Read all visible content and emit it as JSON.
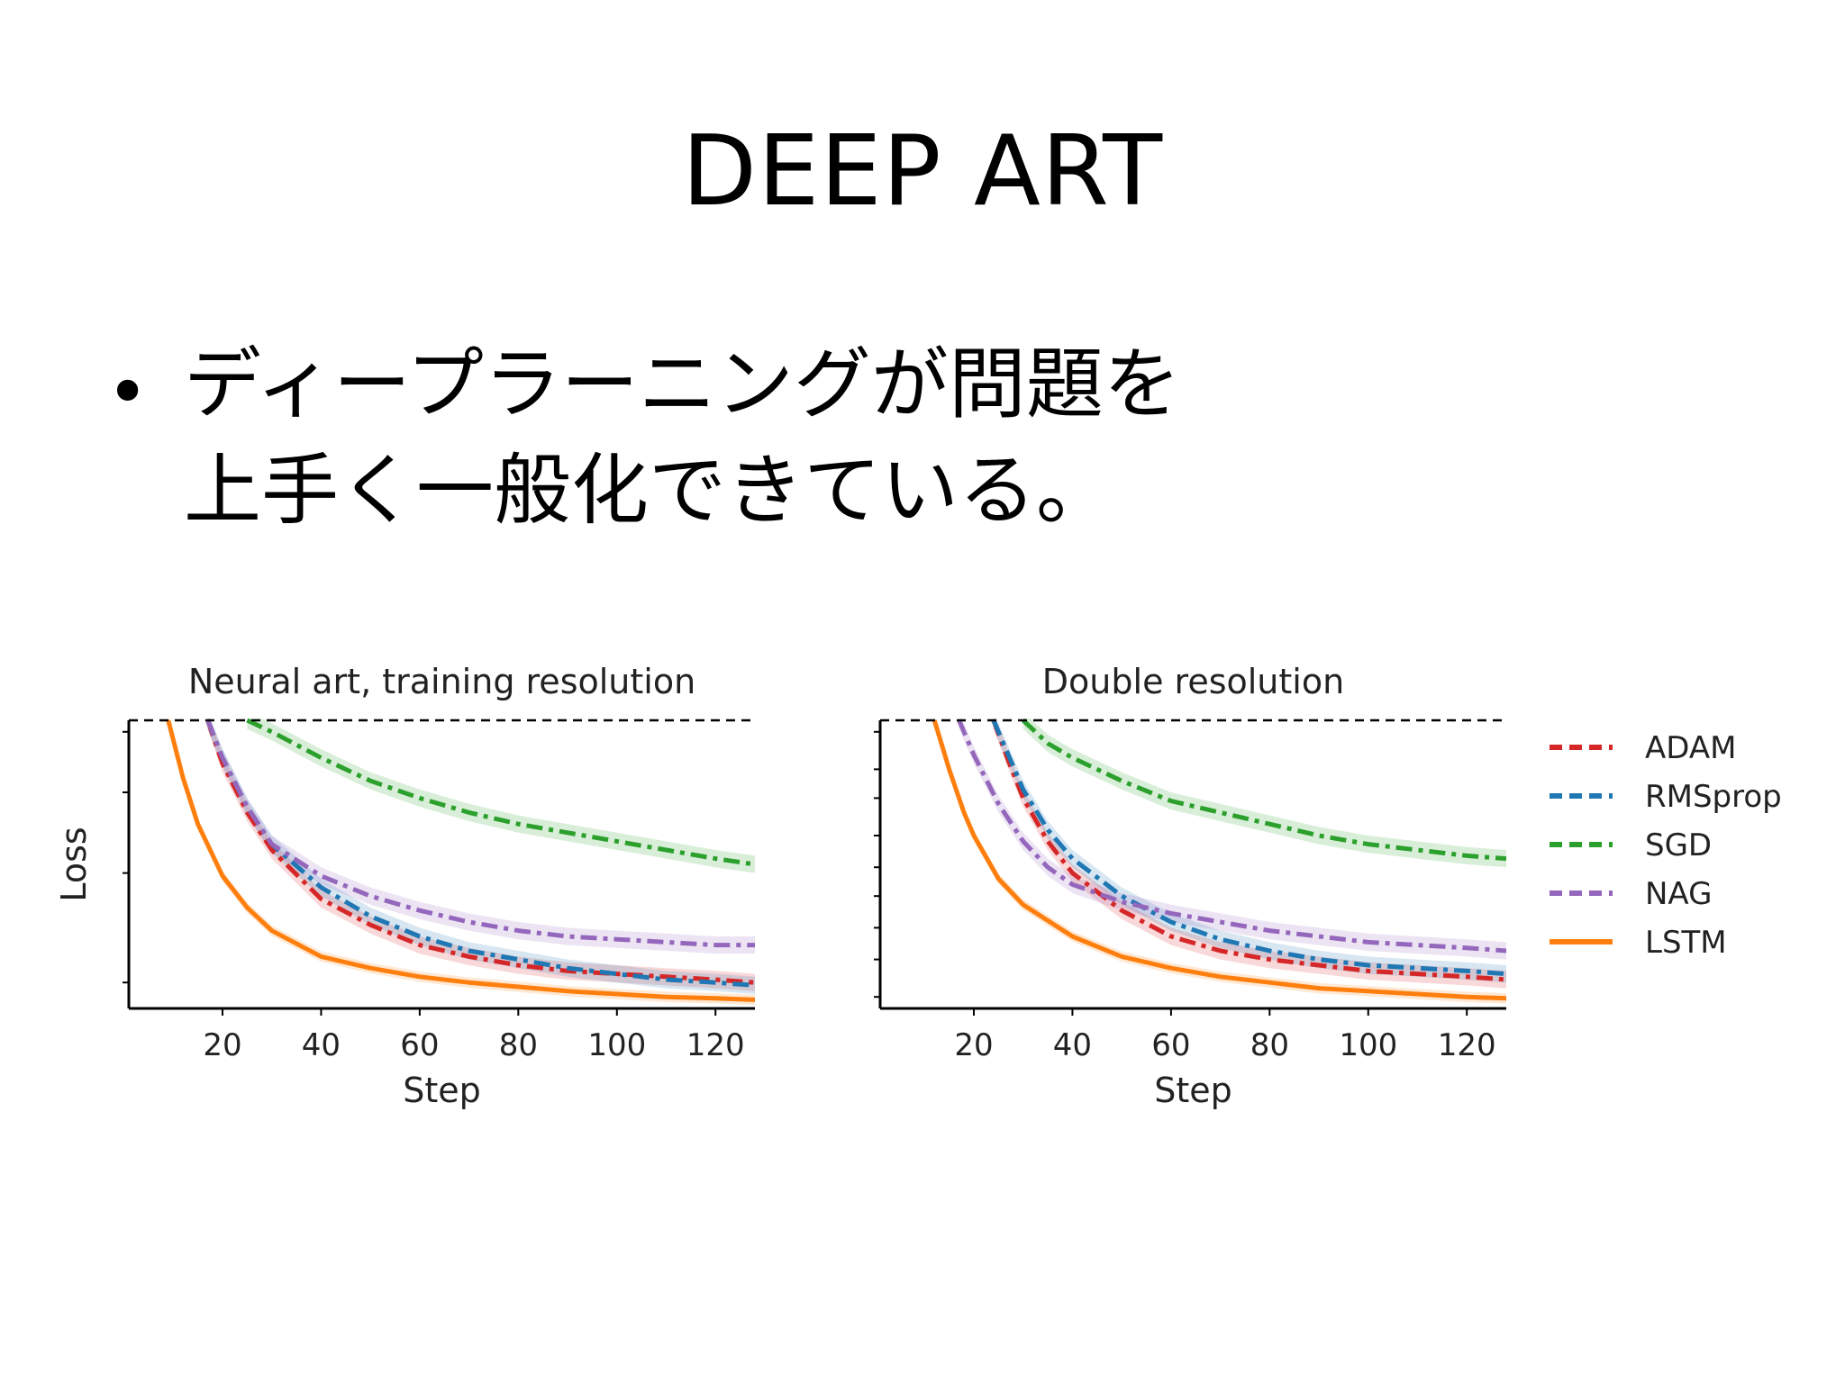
{
  "slide": {
    "title": "DEEP ART",
    "bullet_mark": "•",
    "bullet_lines": [
      "ディープラーニングが問題を",
      "上手く一般化できている。"
    ]
  },
  "chart_data": [
    {
      "type": "line",
      "title": "Neural art, training resolution",
      "xlabel": "Step",
      "ylabel": "Loss",
      "xlim": [
        1,
        128
      ],
      "ylim": [
        0,
        1
      ],
      "x_ticks": [
        20,
        40,
        60,
        80,
        100,
        120
      ],
      "y_axis_numbers_shown": false,
      "reference_line": "dashed black at top",
      "series": [
        {
          "name": "ADAM",
          "color": "#d62728",
          "dash": "dash-dot",
          "x": [
            17,
            20,
            25,
            30,
            40,
            50,
            60,
            70,
            80,
            90,
            100,
            110,
            120,
            128
          ],
          "y": [
            1.0,
            0.85,
            0.68,
            0.55,
            0.38,
            0.29,
            0.22,
            0.18,
            0.15,
            0.13,
            0.12,
            0.11,
            0.1,
            0.09
          ]
        },
        {
          "name": "RMSprop",
          "color": "#1f77b4",
          "dash": "dash-dot",
          "x": [
            17,
            20,
            25,
            30,
            40,
            50,
            60,
            70,
            80,
            90,
            100,
            110,
            120,
            128
          ],
          "y": [
            1.0,
            0.87,
            0.7,
            0.57,
            0.42,
            0.32,
            0.25,
            0.2,
            0.17,
            0.14,
            0.12,
            0.1,
            0.09,
            0.08
          ]
        },
        {
          "name": "SGD",
          "color": "#2ca02c",
          "dash": "dash-dot",
          "x": [
            25,
            30,
            40,
            50,
            60,
            70,
            80,
            90,
            100,
            110,
            120,
            128
          ],
          "y": [
            1.0,
            0.96,
            0.87,
            0.79,
            0.73,
            0.68,
            0.64,
            0.61,
            0.58,
            0.55,
            0.52,
            0.5
          ]
        },
        {
          "name": "NAG",
          "color": "#9467bd",
          "dash": "dash-dot",
          "x": [
            17,
            20,
            25,
            30,
            40,
            50,
            60,
            70,
            80,
            90,
            100,
            110,
            120,
            128
          ],
          "y": [
            1.0,
            0.87,
            0.7,
            0.57,
            0.46,
            0.39,
            0.34,
            0.3,
            0.27,
            0.25,
            0.24,
            0.23,
            0.22,
            0.22
          ]
        },
        {
          "name": "LSTM",
          "color": "#ff7f0e",
          "dash": "solid",
          "x": [
            9,
            12,
            15,
            20,
            25,
            30,
            40,
            50,
            60,
            70,
            80,
            90,
            100,
            110,
            120,
            128
          ],
          "y": [
            1.0,
            0.8,
            0.64,
            0.46,
            0.35,
            0.27,
            0.18,
            0.14,
            0.11,
            0.09,
            0.075,
            0.06,
            0.05,
            0.04,
            0.035,
            0.03
          ]
        }
      ]
    },
    {
      "type": "line",
      "title": "Double resolution",
      "xlabel": "Step",
      "ylabel": "",
      "xlim": [
        1,
        128
      ],
      "ylim": [
        0,
        1
      ],
      "x_ticks": [
        20,
        40,
        60,
        80,
        100,
        120
      ],
      "y_axis_numbers_shown": false,
      "reference_line": "dashed black at top",
      "series": [
        {
          "name": "ADAM",
          "color": "#d62728",
          "dash": "dash-dot",
          "x": [
            24,
            27,
            30,
            35,
            40,
            50,
            60,
            70,
            80,
            90,
            100,
            110,
            120,
            128
          ],
          "y": [
            1.0,
            0.86,
            0.73,
            0.58,
            0.47,
            0.34,
            0.25,
            0.2,
            0.17,
            0.15,
            0.13,
            0.12,
            0.11,
            0.1
          ]
        },
        {
          "name": "RMSprop",
          "color": "#1f77b4",
          "dash": "dash-dot",
          "x": [
            24,
            27,
            30,
            35,
            40,
            50,
            60,
            70,
            80,
            90,
            100,
            110,
            120,
            128
          ],
          "y": [
            1.0,
            0.88,
            0.76,
            0.62,
            0.52,
            0.39,
            0.3,
            0.24,
            0.2,
            0.17,
            0.15,
            0.14,
            0.13,
            0.12
          ]
        },
        {
          "name": "SGD",
          "color": "#2ca02c",
          "dash": "dash-dot",
          "x": [
            30,
            35,
            40,
            50,
            60,
            70,
            80,
            90,
            100,
            110,
            120,
            128
          ],
          "y": [
            1.0,
            0.92,
            0.87,
            0.79,
            0.72,
            0.68,
            0.64,
            0.6,
            0.57,
            0.55,
            0.53,
            0.52
          ]
        },
        {
          "name": "NAG",
          "color": "#9467bd",
          "dash": "dash-dot",
          "x": [
            17,
            20,
            25,
            30,
            35,
            40,
            50,
            60,
            70,
            80,
            90,
            100,
            110,
            120,
            128
          ],
          "y": [
            1.0,
            0.88,
            0.71,
            0.58,
            0.49,
            0.43,
            0.37,
            0.33,
            0.3,
            0.27,
            0.25,
            0.23,
            0.22,
            0.21,
            0.2
          ]
        },
        {
          "name": "LSTM",
          "color": "#ff7f0e",
          "dash": "solid",
          "x": [
            12,
            15,
            18,
            20,
            25,
            30,
            40,
            50,
            60,
            70,
            80,
            90,
            100,
            110,
            120,
            128
          ],
          "y": [
            1.0,
            0.83,
            0.68,
            0.6,
            0.45,
            0.36,
            0.25,
            0.18,
            0.14,
            0.11,
            0.09,
            0.07,
            0.06,
            0.05,
            0.04,
            0.035
          ]
        }
      ]
    }
  ],
  "legend": {
    "placement": "right of second panel",
    "items": [
      {
        "name": "ADAM",
        "color": "#d62728"
      },
      {
        "name": "RMSprop",
        "color": "#1f77b4"
      },
      {
        "name": "SGD",
        "color": "#2ca02c"
      },
      {
        "name": "NAG",
        "color": "#9467bd"
      },
      {
        "name": "LSTM",
        "color": "#ff7f0e"
      }
    ]
  }
}
